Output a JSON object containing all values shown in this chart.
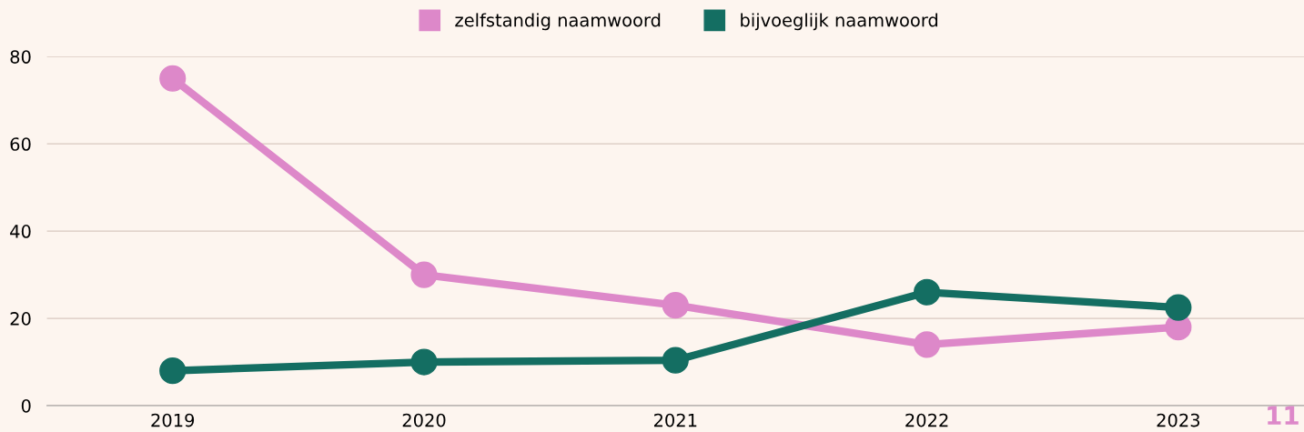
{
  "chart_data": {
    "type": "line",
    "categories": [
      "2019",
      "2020",
      "2021",
      "2022",
      "2023"
    ],
    "series": [
      {
        "name": "zelfstandig naamwoord",
        "color": "#dd88c9",
        "values": [
          75,
          30,
          23,
          14,
          18
        ]
      },
      {
        "name": "bijvoeglijk naamwoord",
        "color": "#146e62",
        "values": [
          8,
          10,
          10.4,
          26,
          22.5
        ]
      }
    ],
    "ylim": [
      0,
      80
    ],
    "yticks": [
      0,
      20,
      40,
      60,
      80
    ],
    "grid": "y",
    "legend": "top",
    "marker": "circle",
    "line_style": "solid",
    "annotations": [
      "11"
    ]
  }
}
